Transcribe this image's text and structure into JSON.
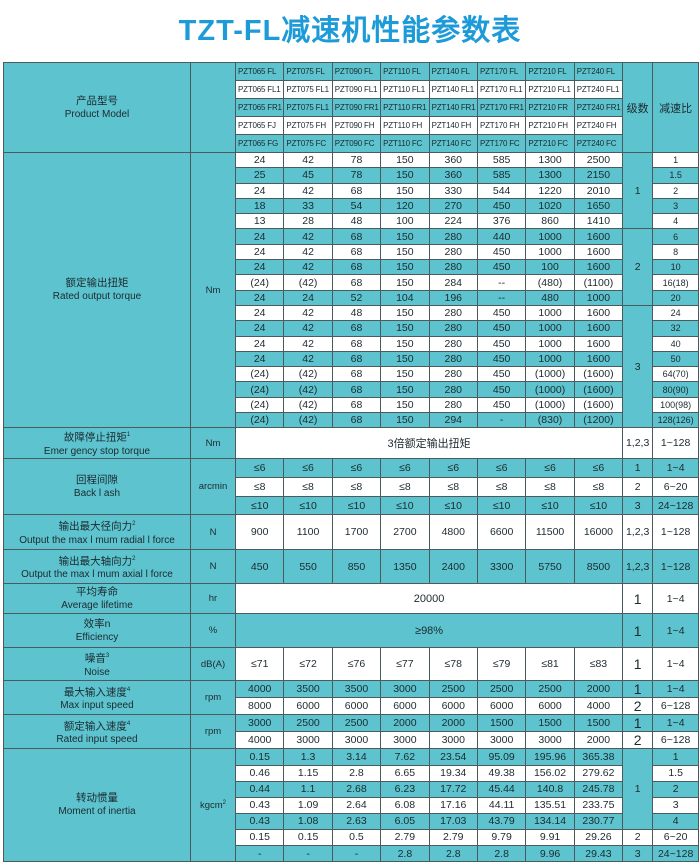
{
  "title": "TZT-FL减速机性能参数表",
  "colors": {
    "teal": "#5cc3cf",
    "white": "#ffffff",
    "title": "#1c9bd8"
  },
  "sections": [
    {
      "key": "header",
      "label_cn": "产品型号",
      "label_en": "Product Model",
      "unit": "",
      "levels": [
        {
          "value": "级数",
          "rows": 5,
          "shade": "teal"
        }
      ],
      "ratio_span": {
        "value": "减速比",
        "rows": 5,
        "shade": "teal"
      },
      "rows": [
        {
          "shade": "teal",
          "cells": [
            "PZT065 FL",
            "PZT075 FL",
            "PZT090 FL",
            "PZT110 FL",
            "PZT140 FL",
            "PZT170 FL",
            "PZT210 FL",
            "PZT240 FL"
          ]
        },
        {
          "shade": "white",
          "cells": [
            "PZT065 FL1",
            "PZT075 FL1",
            "PZT090 FL1",
            "PZT110 FL1",
            "PZT140 FL1",
            "PZT170 FL1",
            "PZT210 FL1",
            "PZT240 FL1"
          ]
        },
        {
          "shade": "teal",
          "cells": [
            "PZT065 FR1",
            "PZT075 FL1",
            "PZT090 FR1",
            "PZT110 FR1",
            "PZT140 FR1",
            "PZT170 FR1",
            "PZT210 FR",
            "PZT240 FR1"
          ]
        },
        {
          "shade": "white",
          "cells": [
            "PZT065 FJ",
            "PZT075 FH",
            "PZT090 FH",
            "PZT110 FH",
            "PZT140 FH",
            "PZT170 FH",
            "PZT210 FH",
            "PZT240 FH"
          ]
        },
        {
          "shade": "teal",
          "cells": [
            "PZT065 FG",
            "PZT075 FC",
            "PZT090 FC",
            "PZT110 FC",
            "PZT140 FC",
            "PZT170 FC",
            "PZT210 FC",
            "PZT240 FC"
          ]
        }
      ]
    },
    {
      "key": "torque",
      "label_cn": "额定输出扭矩",
      "label_en": "Rated output torque",
      "unit": "Nm",
      "levels": [
        {
          "value": "1",
          "rows": 5,
          "shade": "teal"
        },
        {
          "value": "2",
          "rows": 5,
          "shade": "teal"
        },
        {
          "value": "3",
          "rows": 8,
          "shade": "teal"
        }
      ],
      "rows": [
        {
          "shade": "white",
          "ratio": "1",
          "cells": [
            "24",
            "42",
            "78",
            "150",
            "360",
            "585",
            "1300",
            "2500"
          ]
        },
        {
          "shade": "teal",
          "ratio": "1.5",
          "cells": [
            "25",
            "45",
            "78",
            "150",
            "360",
            "585",
            "1300",
            "2150"
          ]
        },
        {
          "shade": "white",
          "ratio": "2",
          "cells": [
            "24",
            "42",
            "68",
            "150",
            "330",
            "544",
            "1220",
            "2010"
          ]
        },
        {
          "shade": "teal",
          "ratio": "3",
          "cells": [
            "18",
            "33",
            "54",
            "120",
            "270",
            "450",
            "1020",
            "1650"
          ]
        },
        {
          "shade": "white",
          "ratio": "4",
          "cells": [
            "13",
            "28",
            "48",
            "100",
            "224",
            "376",
            "860",
            "1410"
          ]
        },
        {
          "shade": "teal",
          "ratio": "6",
          "cells": [
            "24",
            "42",
            "68",
            "150",
            "280",
            "440",
            "1000",
            "1600"
          ]
        },
        {
          "shade": "white",
          "ratio": "8",
          "cells": [
            "24",
            "42",
            "68",
            "150",
            "280",
            "450",
            "1000",
            "1600"
          ]
        },
        {
          "shade": "teal",
          "ratio": "10",
          "cells": [
            "24",
            "42",
            "68",
            "150",
            "280",
            "450",
            "100",
            "1600"
          ]
        },
        {
          "shade": "white",
          "ratio": "16(18)",
          "cells": [
            "(24)",
            "(42)",
            "68",
            "150",
            "284",
            "--",
            "(480)",
            "(1100)"
          ]
        },
        {
          "shade": "teal",
          "ratio": "20",
          "cells": [
            "24",
            "24",
            "52",
            "104",
            "196",
            "--",
            "480",
            "1000"
          ]
        },
        {
          "shade": "white",
          "ratio": "24",
          "cells": [
            "24",
            "42",
            "48",
            "150",
            "280",
            "450",
            "1000",
            "1600"
          ]
        },
        {
          "shade": "teal",
          "ratio": "32",
          "cells": [
            "24",
            "42",
            "68",
            "150",
            "280",
            "450",
            "1000",
            "1600"
          ]
        },
        {
          "shade": "white",
          "ratio": "40",
          "cells": [
            "24",
            "42",
            "68",
            "150",
            "280",
            "450",
            "1000",
            "1600"
          ]
        },
        {
          "shade": "teal",
          "ratio": "50",
          "cells": [
            "24",
            "42",
            "68",
            "150",
            "280",
            "450",
            "1000",
            "1600"
          ]
        },
        {
          "shade": "white",
          "ratio": "64(70)",
          "cells": [
            "(24)",
            "(42)",
            "68",
            "150",
            "280",
            "450",
            "(1000)",
            "(1600)"
          ]
        },
        {
          "shade": "teal",
          "ratio": "80(90)",
          "cells": [
            "(24)",
            "(42)",
            "68",
            "150",
            "280",
            "450",
            "(1000)",
            "(1600)"
          ]
        },
        {
          "shade": "white",
          "ratio": "100(98)",
          "cells": [
            "(24)",
            "(42)",
            "68",
            "150",
            "280",
            "450",
            "(1000)",
            "(1600)"
          ]
        },
        {
          "shade": "teal",
          "ratio": "128(126)",
          "cells": [
            "(24)",
            "(42)",
            "68",
            "150",
            "294",
            "-",
            "(830)",
            "(1200)"
          ]
        }
      ]
    },
    {
      "key": "estop",
      "label_cn": "故障停止扭矩",
      "sup": "1",
      "label_en": "Emer gency stop torque",
      "unit": "Nm",
      "levels": [
        {
          "value": "1,2,3",
          "rows": 1,
          "shade": "white"
        }
      ],
      "rows": [
        {
          "shade": "white",
          "ratio": "1~128",
          "merged": "3倍额定输出扭矩"
        }
      ]
    },
    {
      "key": "backlash",
      "label_cn": "回程间隙",
      "label_en": "Back l ash",
      "unit": "arcmin",
      "levels": [
        {
          "value": "1",
          "rows": 1,
          "shade": "teal"
        },
        {
          "value": "2",
          "rows": 1,
          "shade": "white"
        },
        {
          "value": "3",
          "rows": 1,
          "shade": "teal"
        }
      ],
      "rows": [
        {
          "shade": "teal",
          "ratio": "1~4",
          "cells": [
            "≤6",
            "≤6",
            "≤6",
            "≤6",
            "≤6",
            "≤6",
            "≤6",
            "≤6"
          ]
        },
        {
          "shade": "white",
          "ratio": "6~20",
          "cells": [
            "≤8",
            "≤8",
            "≤8",
            "≤8",
            "≤8",
            "≤8",
            "≤8",
            "≤8"
          ]
        },
        {
          "shade": "teal",
          "ratio": "24~128",
          "cells": [
            "≤10",
            "≤10",
            "≤10",
            "≤10",
            "≤10",
            "≤10",
            "≤10",
            "≤10"
          ]
        }
      ]
    },
    {
      "key": "radial",
      "label_cn": "输出最大径向力",
      "sup": "2",
      "label_en": "Output the max l mum radial l force",
      "unit": "N",
      "levels": [
        {
          "value": "1,2,3",
          "rows": 1,
          "shade": "white"
        }
      ],
      "rows": [
        {
          "shade": "white",
          "ratio": "1~128",
          "cells": [
            "900",
            "1100",
            "1700",
            "2700",
            "4800",
            "6600",
            "11500",
            "16000"
          ]
        }
      ]
    },
    {
      "key": "axial",
      "label_cn": "输出最大轴向力",
      "sup": "2",
      "label_en": "Output the max l mum axial l force",
      "unit": "N",
      "levels": [
        {
          "value": "1,2,3",
          "rows": 1,
          "shade": "teal"
        }
      ],
      "rows": [
        {
          "shade": "teal",
          "ratio": "1~128",
          "cells": [
            "450",
            "550",
            "850",
            "1350",
            "2400",
            "3300",
            "5750",
            "8500"
          ]
        }
      ]
    },
    {
      "key": "life",
      "label_cn": "平均寿命",
      "label_en": "Average lifetime",
      "unit": "hr",
      "levels": [
        {
          "value": "1",
          "rows": 1,
          "shade": "white"
        }
      ],
      "rows": [
        {
          "shade": "white",
          "ratio": "1~4",
          "merged": "20000"
        }
      ]
    },
    {
      "key": "eff",
      "label_cn": "效率n",
      "label_en": "Efficiency",
      "unit": "%",
      "levels": [
        {
          "value": "1",
          "rows": 1,
          "shade": "teal"
        }
      ],
      "rows": [
        {
          "shade": "teal",
          "ratio": "1~4",
          "merged": "≥98%"
        }
      ]
    },
    {
      "key": "noise",
      "label_cn": "噪音",
      "sup": "3",
      "label_en": "Noise",
      "unit": "dB(A)",
      "levels": [
        {
          "value": "1",
          "rows": 1,
          "shade": "white"
        }
      ],
      "rows": [
        {
          "shade": "white",
          "ratio": "1~4",
          "cells": [
            "≤71",
            "≤72",
            "≤76",
            "≤77",
            "≤78",
            "≤79",
            "≤81",
            "≤83"
          ]
        }
      ]
    },
    {
      "key": "maxspeed",
      "label_cn": "最大输入速度",
      "sup": "4",
      "label_en": "Max input speed",
      "unit": "rpm",
      "levels": [
        {
          "value": "1",
          "rows": 1,
          "shade": "teal"
        },
        {
          "value": "2",
          "rows": 1,
          "shade": "white"
        }
      ],
      "rows": [
        {
          "shade": "teal",
          "ratio": "1~4",
          "cells": [
            "4000",
            "3500",
            "3500",
            "3000",
            "2500",
            "2500",
            "2500",
            "2000"
          ]
        },
        {
          "shade": "white",
          "ratio": "6~128",
          "cells": [
            "8000",
            "6000",
            "6000",
            "6000",
            "6000",
            "6000",
            "6000",
            "4000"
          ]
        }
      ]
    },
    {
      "key": "ratedspeed",
      "label_cn": "额定输入速度",
      "sup": "4",
      "label_en": "Rated input speed",
      "unit": "rpm",
      "levels": [
        {
          "value": "1",
          "rows": 1,
          "shade": "teal"
        },
        {
          "value": "2",
          "rows": 1,
          "shade": "white"
        }
      ],
      "rows": [
        {
          "shade": "teal",
          "ratio": "1~4",
          "cells": [
            "3000",
            "2500",
            "2500",
            "2000",
            "2000",
            "1500",
            "1500",
            "1500"
          ]
        },
        {
          "shade": "white",
          "ratio": "6~128",
          "cells": [
            "4000",
            "3000",
            "3000",
            "3000",
            "3000",
            "3000",
            "3000",
            "2000"
          ]
        }
      ]
    },
    {
      "key": "inertia",
      "label_cn": "转动惯量",
      "label_en": "Moment of inertia",
      "unit": "kgcm",
      "unit_sup": "2",
      "levels": [
        {
          "value": "1",
          "rows": 5,
          "shade": "teal"
        },
        {
          "value": "2",
          "rows": 1,
          "shade": "white"
        },
        {
          "value": "3",
          "rows": 1,
          "shade": "teal"
        }
      ],
      "rows": [
        {
          "shade": "teal",
          "ratio": "1",
          "cells": [
            "0.15",
            "1.3",
            "3.14",
            "7.62",
            "23.54",
            "95.09",
            "195.96",
            "365.38"
          ]
        },
        {
          "shade": "white",
          "ratio": "1.5",
          "cells": [
            "0.46",
            "1.15",
            "2.8",
            "6.65",
            "19.34",
            "49.38",
            "156.02",
            "279.62"
          ]
        },
        {
          "shade": "teal",
          "ratio": "2",
          "cells": [
            "0.44",
            "1.1",
            "2.68",
            "6.23",
            "17.72",
            "45.44",
            "140.8",
            "245.78"
          ]
        },
        {
          "shade": "white",
          "ratio": "3",
          "cells": [
            "0.43",
            "1.09",
            "2.64",
            "6.08",
            "17.16",
            "44.11",
            "135.51",
            "233.75"
          ]
        },
        {
          "shade": "teal",
          "ratio": "4",
          "cells": [
            "0.43",
            "1.08",
            "2.63",
            "6.05",
            "17.03",
            "43.79",
            "134.14",
            "230.77"
          ]
        },
        {
          "shade": "white",
          "ratio": "6~20",
          "cells": [
            "0.15",
            "0.15",
            "0.5",
            "2.79",
            "2.79",
            "9.79",
            "9.91",
            "29.26"
          ]
        },
        {
          "shade": "teal",
          "ratio": "24~128",
          "cells": [
            "-",
            "-",
            "-",
            "2.8",
            "2.8",
            "2.8",
            "9.96",
            "29.43"
          ]
        }
      ]
    }
  ]
}
